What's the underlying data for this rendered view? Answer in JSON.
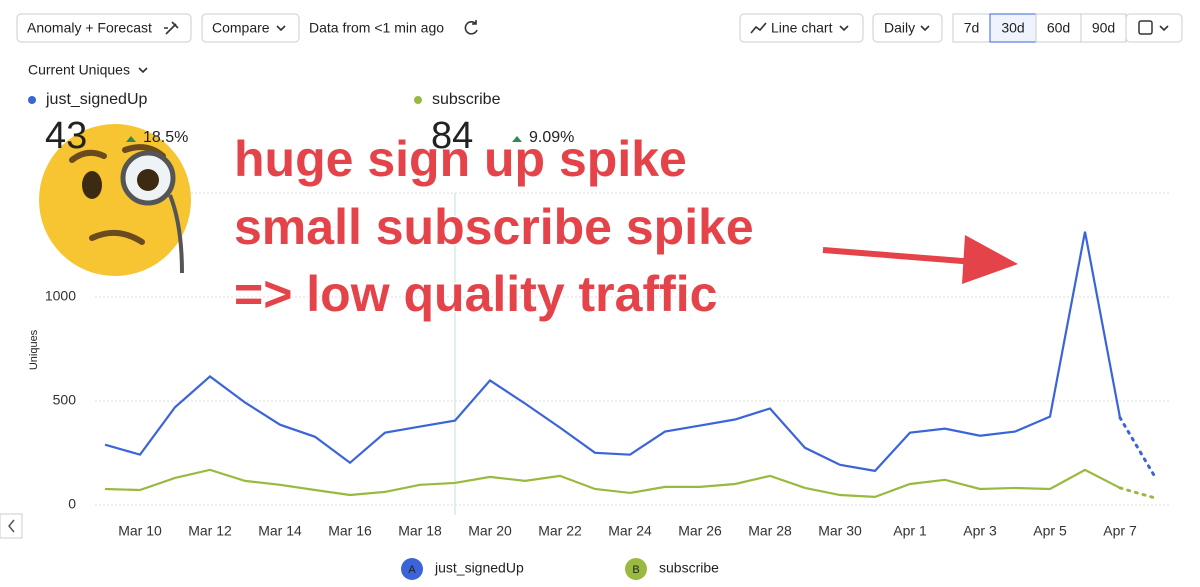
{
  "toolbar": {
    "buttons": [
      "Anomaly + Forecast",
      "Compare"
    ],
    "status": "Data from <1 min ago",
    "chart_type": "Line chart",
    "interval": "Daily",
    "ranges": [
      "7d",
      "30d",
      "60d",
      "90d"
    ],
    "active_range": "30d"
  },
  "metric": "Current Uniques",
  "stats": [
    {
      "name": "just_signedUp",
      "value": "43",
      "change": "18.5%"
    },
    {
      "name": "subscribe",
      "value": "84",
      "change": "9.09%"
    }
  ],
  "annotation": [
    "huge sign up spike",
    "small subscribe spike",
    "=> low quality traffic"
  ],
  "chart_data": {
    "type": "line",
    "y_label": "Uniques",
    "categories": [
      null,
      "Mar 10",
      null,
      "Mar 12",
      null,
      "Mar 14",
      null,
      "Mar 16",
      null,
      "Mar 18",
      null,
      "Mar 20",
      null,
      "Mar 22",
      null,
      "Mar 24",
      null,
      "Mar 26",
      null,
      "Mar 28",
      null,
      "Mar 30",
      null,
      "Apr 1",
      null,
      "Apr 3",
      null,
      "Apr 5",
      null,
      "Apr 7",
      null
    ],
    "ylim": [
      0,
      1500
    ],
    "yticks": [
      0,
      500,
      1000
    ],
    "grid": true,
    "forecast_from": 29,
    "legend_badges": [
      "A",
      "B"
    ],
    "series": [
      {
        "name": "just_signedUp",
        "color": "#3b64d8",
        "values": [
          290,
          242,
          470,
          618,
          493,
          386,
          328,
          203,
          348,
          377,
          406,
          599,
          488,
          372,
          251,
          242,
          353,
          382,
          411,
          464,
          275,
          193,
          164,
          348,
          367,
          333,
          353,
          425,
          1314,
          420,
          135
        ]
      },
      {
        "name": "subscribe",
        "color": "#9ab93f",
        "values": [
          77,
          72,
          130,
          169,
          116,
          97,
          72,
          48,
          63,
          97,
          106,
          135,
          116,
          140,
          77,
          58,
          87,
          87,
          101,
          140,
          82,
          48,
          39,
          101,
          121,
          77,
          82,
          77,
          169,
          82,
          34
        ]
      }
    ]
  }
}
